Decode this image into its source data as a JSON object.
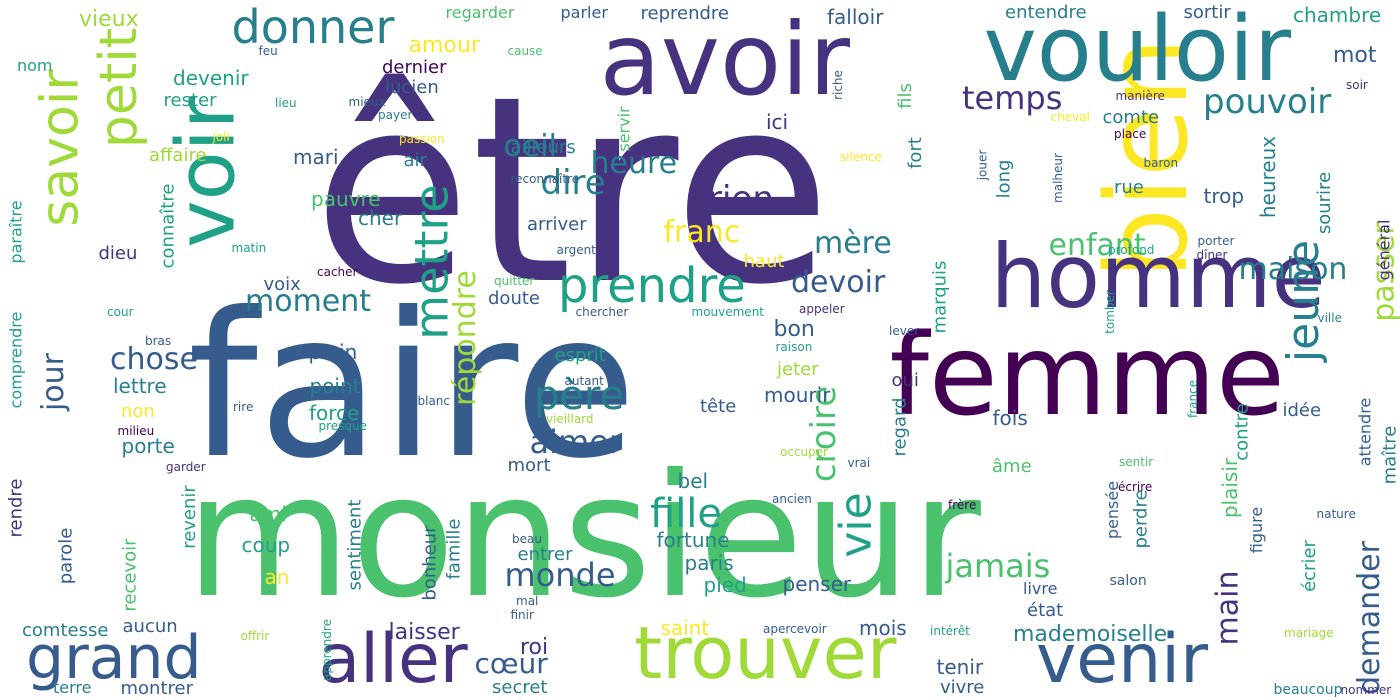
{
  "palette": {
    "c1": "#440154",
    "c2": "#46327e",
    "c3": "#365c8d",
    "c4": "#277f8e",
    "c5": "#1fa187",
    "c6": "#4ac16d",
    "c7": "#a0da39",
    "c8": "#fde725"
  },
  "words": [
    {
      "text": "être"
    },
    {
      "text": "faire"
    },
    {
      "text": "monsieur"
    },
    {
      "text": "avoir"
    },
    {
      "text": "femme"
    },
    {
      "text": "bien"
    },
    {
      "text": "vouloir"
    },
    {
      "text": "homme"
    },
    {
      "text": "voir"
    },
    {
      "text": "trouver"
    },
    {
      "text": "venir"
    },
    {
      "text": "aller"
    },
    {
      "text": "grand"
    },
    {
      "text": "petit"
    },
    {
      "text": "savoir"
    },
    {
      "text": "prendre"
    },
    {
      "text": "donner"
    },
    {
      "text": "mettre"
    },
    {
      "text": "jeune"
    },
    {
      "text": "pouvoir"
    },
    {
      "text": "vie"
    },
    {
      "text": "fille"
    },
    {
      "text": "père"
    },
    {
      "text": "dire"
    },
    {
      "text": "rien"
    },
    {
      "text": "croire"
    },
    {
      "text": "temps"
    },
    {
      "text": "jamais"
    },
    {
      "text": "monde"
    },
    {
      "text": "aimer"
    },
    {
      "text": "maison"
    },
    {
      "text": "enfant"
    },
    {
      "text": "répondre"
    },
    {
      "text": "jour"
    },
    {
      "text": "chose"
    },
    {
      "text": "moment"
    },
    {
      "text": "heure"
    },
    {
      "text": "devoir"
    },
    {
      "text": "demander"
    },
    {
      "text": "passer"
    },
    {
      "text": "main"
    },
    {
      "text": "franc"
    },
    {
      "text": "mère"
    },
    {
      "text": "oeil"
    },
    {
      "text": "cœur"
    },
    {
      "text": "laisser"
    },
    {
      "text": "roi"
    },
    {
      "text": "mademoiselle"
    },
    {
      "text": "amour"
    },
    {
      "text": "vieux"
    },
    {
      "text": "fortune"
    },
    {
      "text": "bon"
    },
    {
      "text": "paris"
    },
    {
      "text": "mourir"
    },
    {
      "text": "penser"
    },
    {
      "text": "plaisir"
    },
    {
      "text": "écrier"
    },
    {
      "text": "heureux"
    },
    {
      "text": "sourire"
    },
    {
      "text": "général"
    },
    {
      "text": "mot"
    },
    {
      "text": "chambre"
    },
    {
      "text": "sortir"
    },
    {
      "text": "entendre"
    },
    {
      "text": "falloir"
    },
    {
      "text": "reprendre"
    },
    {
      "text": "parler"
    },
    {
      "text": "regarder"
    },
    {
      "text": "devenir"
    },
    {
      "text": "rester"
    },
    {
      "text": "affaire"
    },
    {
      "text": "connaître"
    },
    {
      "text": "dieu"
    },
    {
      "text": "voix"
    },
    {
      "text": "plein"
    },
    {
      "text": "point"
    },
    {
      "text": "lettre"
    },
    {
      "text": "force"
    },
    {
      "text": "non"
    },
    {
      "text": "porte"
    },
    {
      "text": "ami"
    },
    {
      "text": "coup"
    },
    {
      "text": "an"
    },
    {
      "text": "revenir"
    },
    {
      "text": "recevoir"
    },
    {
      "text": "sentiment"
    },
    {
      "text": "parole"
    },
    {
      "text": "rendre"
    },
    {
      "text": "comprendre"
    },
    {
      "text": "paraître"
    },
    {
      "text": "mari"
    },
    {
      "text": "pauvre"
    },
    {
      "text": "cher"
    },
    {
      "text": "air"
    },
    {
      "text": "ailleurs"
    },
    {
      "text": "servir"
    },
    {
      "text": "ici"
    },
    {
      "text": "lucien"
    },
    {
      "text": "dernier"
    },
    {
      "text": "arriver"
    },
    {
      "text": "doute"
    },
    {
      "text": "esprit"
    },
    {
      "text": "haut"
    },
    {
      "text": "jeter"
    },
    {
      "text": "tête"
    },
    {
      "text": "oui"
    },
    {
      "text": "fois"
    },
    {
      "text": "regard"
    },
    {
      "text": "marquis"
    },
    {
      "text": "long"
    },
    {
      "text": "fort"
    },
    {
      "text": "fils"
    },
    {
      "text": "comte"
    },
    {
      "text": "rue"
    },
    {
      "text": "trop"
    },
    {
      "text": "âme"
    },
    {
      "text": "pensée"
    },
    {
      "text": "perdre"
    },
    {
      "text": "figure"
    },
    {
      "text": "contre"
    },
    {
      "text": "attendre"
    },
    {
      "text": "idée"
    },
    {
      "text": "maître"
    },
    {
      "text": "bel"
    },
    {
      "text": "mort"
    },
    {
      "text": "bonheur"
    },
    {
      "text": "famille"
    },
    {
      "text": "entrer"
    },
    {
      "text": "pied"
    },
    {
      "text": "saint"
    },
    {
      "text": "secret"
    },
    {
      "text": "aucun"
    },
    {
      "text": "comtesse"
    },
    {
      "text": "montrer"
    },
    {
      "text": "terre"
    },
    {
      "text": "mois"
    },
    {
      "text": "tenir"
    },
    {
      "text": "vivre"
    },
    {
      "text": "état"
    },
    {
      "text": "livre"
    },
    {
      "text": "salon"
    },
    {
      "text": "beaucoup"
    },
    {
      "text": "nommer"
    },
    {
      "text": "mariage"
    },
    {
      "text": "intérêt"
    },
    {
      "text": "apercevoir"
    },
    {
      "text": "finir"
    },
    {
      "text": "mal"
    },
    {
      "text": "offrir"
    },
    {
      "text": "apprendre"
    },
    {
      "text": "beau"
    },
    {
      "text": "ancien"
    },
    {
      "text": "frère"
    },
    {
      "text": "nature"
    },
    {
      "text": "sentir"
    },
    {
      "text": "vrai"
    },
    {
      "text": "occuper"
    },
    {
      "text": "garder"
    },
    {
      "text": "écrire"
    },
    {
      "text": "france"
    },
    {
      "text": "vieillard"
    },
    {
      "text": "autant"
    },
    {
      "text": "presque"
    },
    {
      "text": "blanc"
    },
    {
      "text": "rire"
    },
    {
      "text": "milieu"
    },
    {
      "text": "bras"
    },
    {
      "text": "cour"
    },
    {
      "text": "cacher"
    },
    {
      "text": "quitter"
    },
    {
      "text": "matin"
    },
    {
      "text": "argent"
    },
    {
      "text": "chercher"
    },
    {
      "text": "mouvement"
    },
    {
      "text": "appeler"
    },
    {
      "text": "raison"
    },
    {
      "text": "lever"
    },
    {
      "text": "tomber"
    },
    {
      "text": "ville"
    },
    {
      "text": "porter"
    },
    {
      "text": "dîner"
    },
    {
      "text": "profond"
    },
    {
      "text": "jouer"
    },
    {
      "text": "malheur"
    },
    {
      "text": "baron"
    },
    {
      "text": "silence"
    },
    {
      "text": "place"
    },
    {
      "text": "cheval"
    },
    {
      "text": "manière"
    },
    {
      "text": "soir"
    },
    {
      "text": "riche"
    },
    {
      "text": "reconnaître"
    },
    {
      "text": "passion"
    },
    {
      "text": "joli"
    },
    {
      "text": "payer"
    },
    {
      "text": "mieux"
    },
    {
      "text": "lieu"
    },
    {
      "text": "nom"
    },
    {
      "text": "feu"
    },
    {
      "text": "cause"
    }
  ]
}
